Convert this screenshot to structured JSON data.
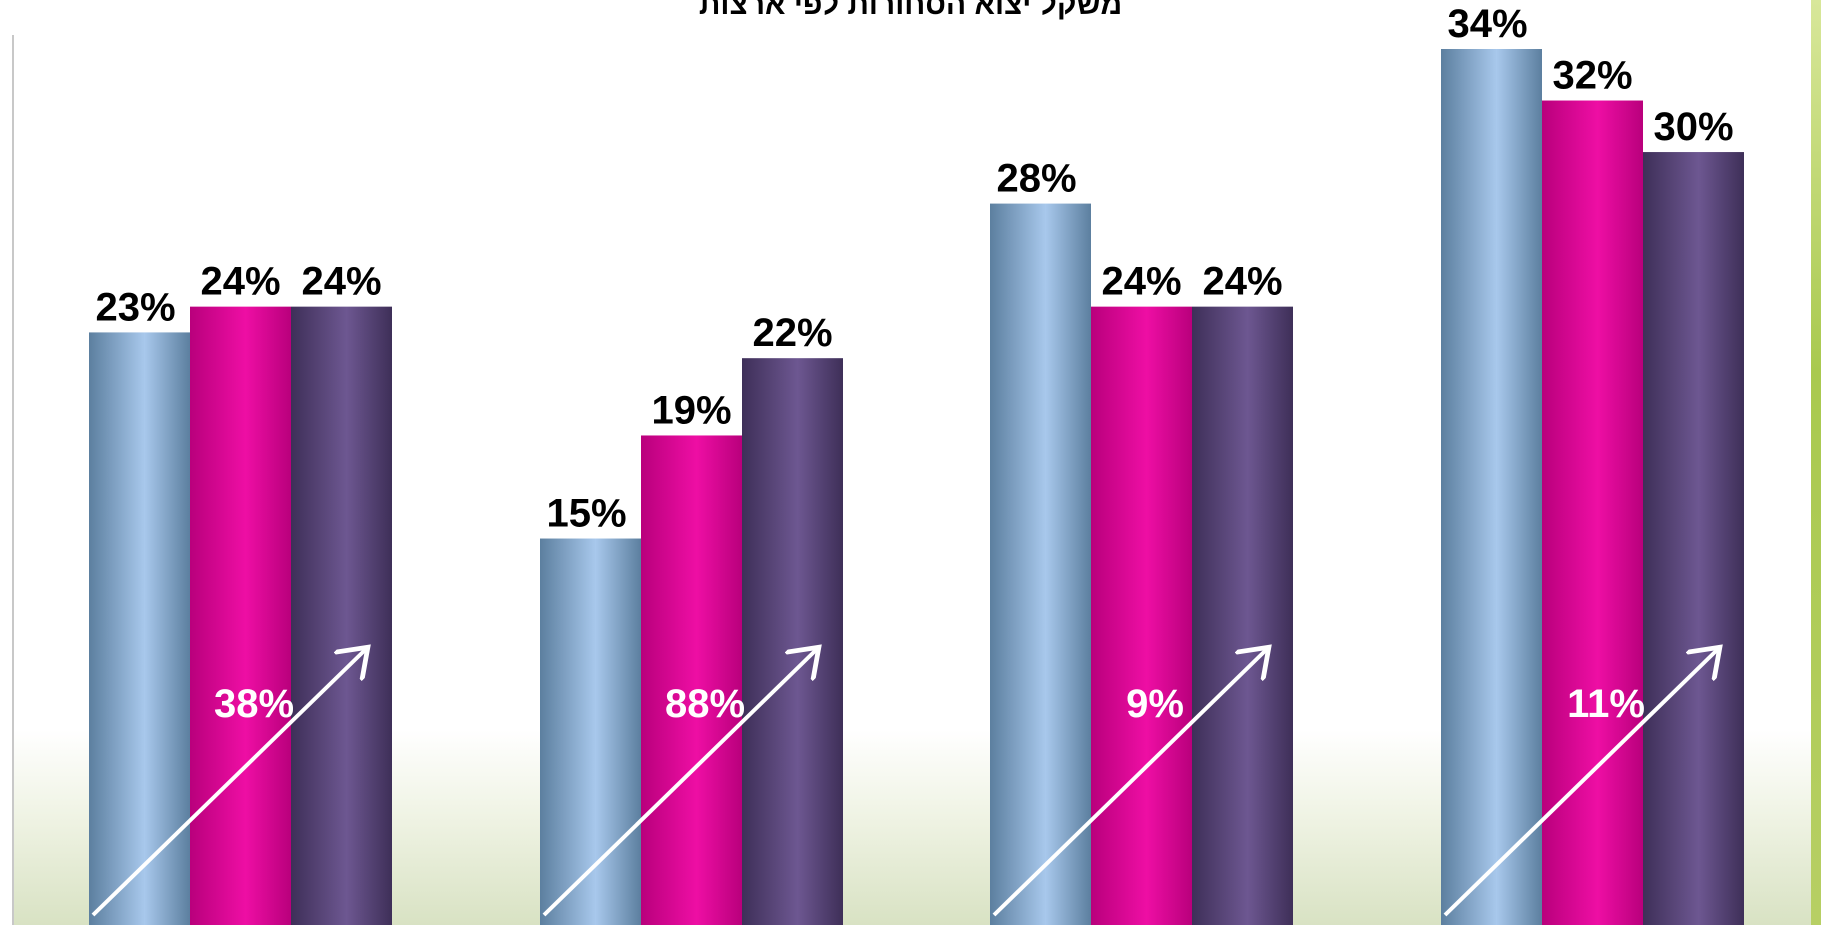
{
  "title": "משקל יצוא הסחורות לפי ארצות",
  "chart_data": {
    "type": "bar",
    "title": "משקל יצוא הסחורות לפי ארצות",
    "categories": [
      "",
      "",
      "",
      ""
    ],
    "series": [
      {
        "values": [
          23,
          15,
          28,
          34
        ]
      },
      {
        "values": [
          24,
          19,
          24,
          32
        ]
      },
      {
        "values": [
          24,
          22,
          24,
          30
        ]
      }
    ],
    "value_labels": [
      [
        "23%",
        "15%",
        "28%",
        "34%"
      ],
      [
        "24%",
        "19%",
        "24%",
        "32%"
      ],
      [
        "24%",
        "22%",
        "24%",
        "30%"
      ]
    ],
    "growth_labels": [
      "38%",
      "88%",
      "9%",
      "11%"
    ],
    "ylim": [
      0,
      34
    ],
    "grid": false,
    "legend": "none",
    "colors": {
      "series_1": [
        "#5c7f9f",
        "#a8c8ec"
      ],
      "series_2": [
        "#b9007c",
        "#ee0ea4"
      ],
      "series_3": [
        "#3e2f58",
        "#6d5791"
      ],
      "growth_label": "#ffffff",
      "arrow": "#ffffff",
      "title": "#000000"
    }
  }
}
